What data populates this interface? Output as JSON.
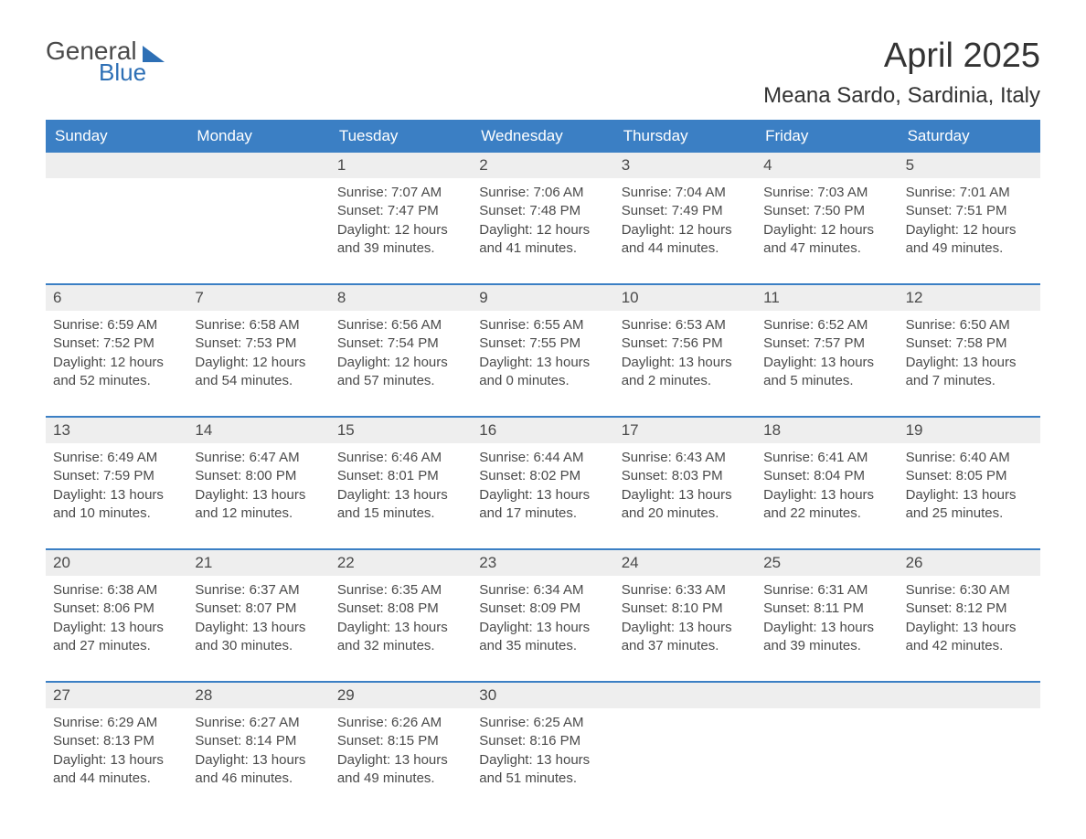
{
  "logo": {
    "textGeneral": "General",
    "textBlue": "Blue"
  },
  "title": "April 2025",
  "location": "Meana Sardo, Sardinia, Italy",
  "colors": {
    "headerBg": "#3b7fc4",
    "headerText": "#ffffff",
    "dayNumberBg": "#eeeeee",
    "weekBorder": "#3b7fc4",
    "bodyText": "#4a4a4a",
    "logoBlue": "#2d6fb5"
  },
  "dayHeaders": [
    "Sunday",
    "Monday",
    "Tuesday",
    "Wednesday",
    "Thursday",
    "Friday",
    "Saturday"
  ],
  "weeks": [
    [
      {
        "num": "",
        "sunrise": "",
        "sunset": "",
        "daylight": ""
      },
      {
        "num": "",
        "sunrise": "",
        "sunset": "",
        "daylight": ""
      },
      {
        "num": "1",
        "sunrise": "Sunrise: 7:07 AM",
        "sunset": "Sunset: 7:47 PM",
        "daylight": "Daylight: 12 hours and 39 minutes."
      },
      {
        "num": "2",
        "sunrise": "Sunrise: 7:06 AM",
        "sunset": "Sunset: 7:48 PM",
        "daylight": "Daylight: 12 hours and 41 minutes."
      },
      {
        "num": "3",
        "sunrise": "Sunrise: 7:04 AM",
        "sunset": "Sunset: 7:49 PM",
        "daylight": "Daylight: 12 hours and 44 minutes."
      },
      {
        "num": "4",
        "sunrise": "Sunrise: 7:03 AM",
        "sunset": "Sunset: 7:50 PM",
        "daylight": "Daylight: 12 hours and 47 minutes."
      },
      {
        "num": "5",
        "sunrise": "Sunrise: 7:01 AM",
        "sunset": "Sunset: 7:51 PM",
        "daylight": "Daylight: 12 hours and 49 minutes."
      }
    ],
    [
      {
        "num": "6",
        "sunrise": "Sunrise: 6:59 AM",
        "sunset": "Sunset: 7:52 PM",
        "daylight": "Daylight: 12 hours and 52 minutes."
      },
      {
        "num": "7",
        "sunrise": "Sunrise: 6:58 AM",
        "sunset": "Sunset: 7:53 PM",
        "daylight": "Daylight: 12 hours and 54 minutes."
      },
      {
        "num": "8",
        "sunrise": "Sunrise: 6:56 AM",
        "sunset": "Sunset: 7:54 PM",
        "daylight": "Daylight: 12 hours and 57 minutes."
      },
      {
        "num": "9",
        "sunrise": "Sunrise: 6:55 AM",
        "sunset": "Sunset: 7:55 PM",
        "daylight": "Daylight: 13 hours and 0 minutes."
      },
      {
        "num": "10",
        "sunrise": "Sunrise: 6:53 AM",
        "sunset": "Sunset: 7:56 PM",
        "daylight": "Daylight: 13 hours and 2 minutes."
      },
      {
        "num": "11",
        "sunrise": "Sunrise: 6:52 AM",
        "sunset": "Sunset: 7:57 PM",
        "daylight": "Daylight: 13 hours and 5 minutes."
      },
      {
        "num": "12",
        "sunrise": "Sunrise: 6:50 AM",
        "sunset": "Sunset: 7:58 PM",
        "daylight": "Daylight: 13 hours and 7 minutes."
      }
    ],
    [
      {
        "num": "13",
        "sunrise": "Sunrise: 6:49 AM",
        "sunset": "Sunset: 7:59 PM",
        "daylight": "Daylight: 13 hours and 10 minutes."
      },
      {
        "num": "14",
        "sunrise": "Sunrise: 6:47 AM",
        "sunset": "Sunset: 8:00 PM",
        "daylight": "Daylight: 13 hours and 12 minutes."
      },
      {
        "num": "15",
        "sunrise": "Sunrise: 6:46 AM",
        "sunset": "Sunset: 8:01 PM",
        "daylight": "Daylight: 13 hours and 15 minutes."
      },
      {
        "num": "16",
        "sunrise": "Sunrise: 6:44 AM",
        "sunset": "Sunset: 8:02 PM",
        "daylight": "Daylight: 13 hours and 17 minutes."
      },
      {
        "num": "17",
        "sunrise": "Sunrise: 6:43 AM",
        "sunset": "Sunset: 8:03 PM",
        "daylight": "Daylight: 13 hours and 20 minutes."
      },
      {
        "num": "18",
        "sunrise": "Sunrise: 6:41 AM",
        "sunset": "Sunset: 8:04 PM",
        "daylight": "Daylight: 13 hours and 22 minutes."
      },
      {
        "num": "19",
        "sunrise": "Sunrise: 6:40 AM",
        "sunset": "Sunset: 8:05 PM",
        "daylight": "Daylight: 13 hours and 25 minutes."
      }
    ],
    [
      {
        "num": "20",
        "sunrise": "Sunrise: 6:38 AM",
        "sunset": "Sunset: 8:06 PM",
        "daylight": "Daylight: 13 hours and 27 minutes."
      },
      {
        "num": "21",
        "sunrise": "Sunrise: 6:37 AM",
        "sunset": "Sunset: 8:07 PM",
        "daylight": "Daylight: 13 hours and 30 minutes."
      },
      {
        "num": "22",
        "sunrise": "Sunrise: 6:35 AM",
        "sunset": "Sunset: 8:08 PM",
        "daylight": "Daylight: 13 hours and 32 minutes."
      },
      {
        "num": "23",
        "sunrise": "Sunrise: 6:34 AM",
        "sunset": "Sunset: 8:09 PM",
        "daylight": "Daylight: 13 hours and 35 minutes."
      },
      {
        "num": "24",
        "sunrise": "Sunrise: 6:33 AM",
        "sunset": "Sunset: 8:10 PM",
        "daylight": "Daylight: 13 hours and 37 minutes."
      },
      {
        "num": "25",
        "sunrise": "Sunrise: 6:31 AM",
        "sunset": "Sunset: 8:11 PM",
        "daylight": "Daylight: 13 hours and 39 minutes."
      },
      {
        "num": "26",
        "sunrise": "Sunrise: 6:30 AM",
        "sunset": "Sunset: 8:12 PM",
        "daylight": "Daylight: 13 hours and 42 minutes."
      }
    ],
    [
      {
        "num": "27",
        "sunrise": "Sunrise: 6:29 AM",
        "sunset": "Sunset: 8:13 PM",
        "daylight": "Daylight: 13 hours and 44 minutes."
      },
      {
        "num": "28",
        "sunrise": "Sunrise: 6:27 AM",
        "sunset": "Sunset: 8:14 PM",
        "daylight": "Daylight: 13 hours and 46 minutes."
      },
      {
        "num": "29",
        "sunrise": "Sunrise: 6:26 AM",
        "sunset": "Sunset: 8:15 PM",
        "daylight": "Daylight: 13 hours and 49 minutes."
      },
      {
        "num": "30",
        "sunrise": "Sunrise: 6:25 AM",
        "sunset": "Sunset: 8:16 PM",
        "daylight": "Daylight: 13 hours and 51 minutes."
      },
      {
        "num": "",
        "sunrise": "",
        "sunset": "",
        "daylight": ""
      },
      {
        "num": "",
        "sunrise": "",
        "sunset": "",
        "daylight": ""
      },
      {
        "num": "",
        "sunrise": "",
        "sunset": "",
        "daylight": ""
      }
    ]
  ]
}
